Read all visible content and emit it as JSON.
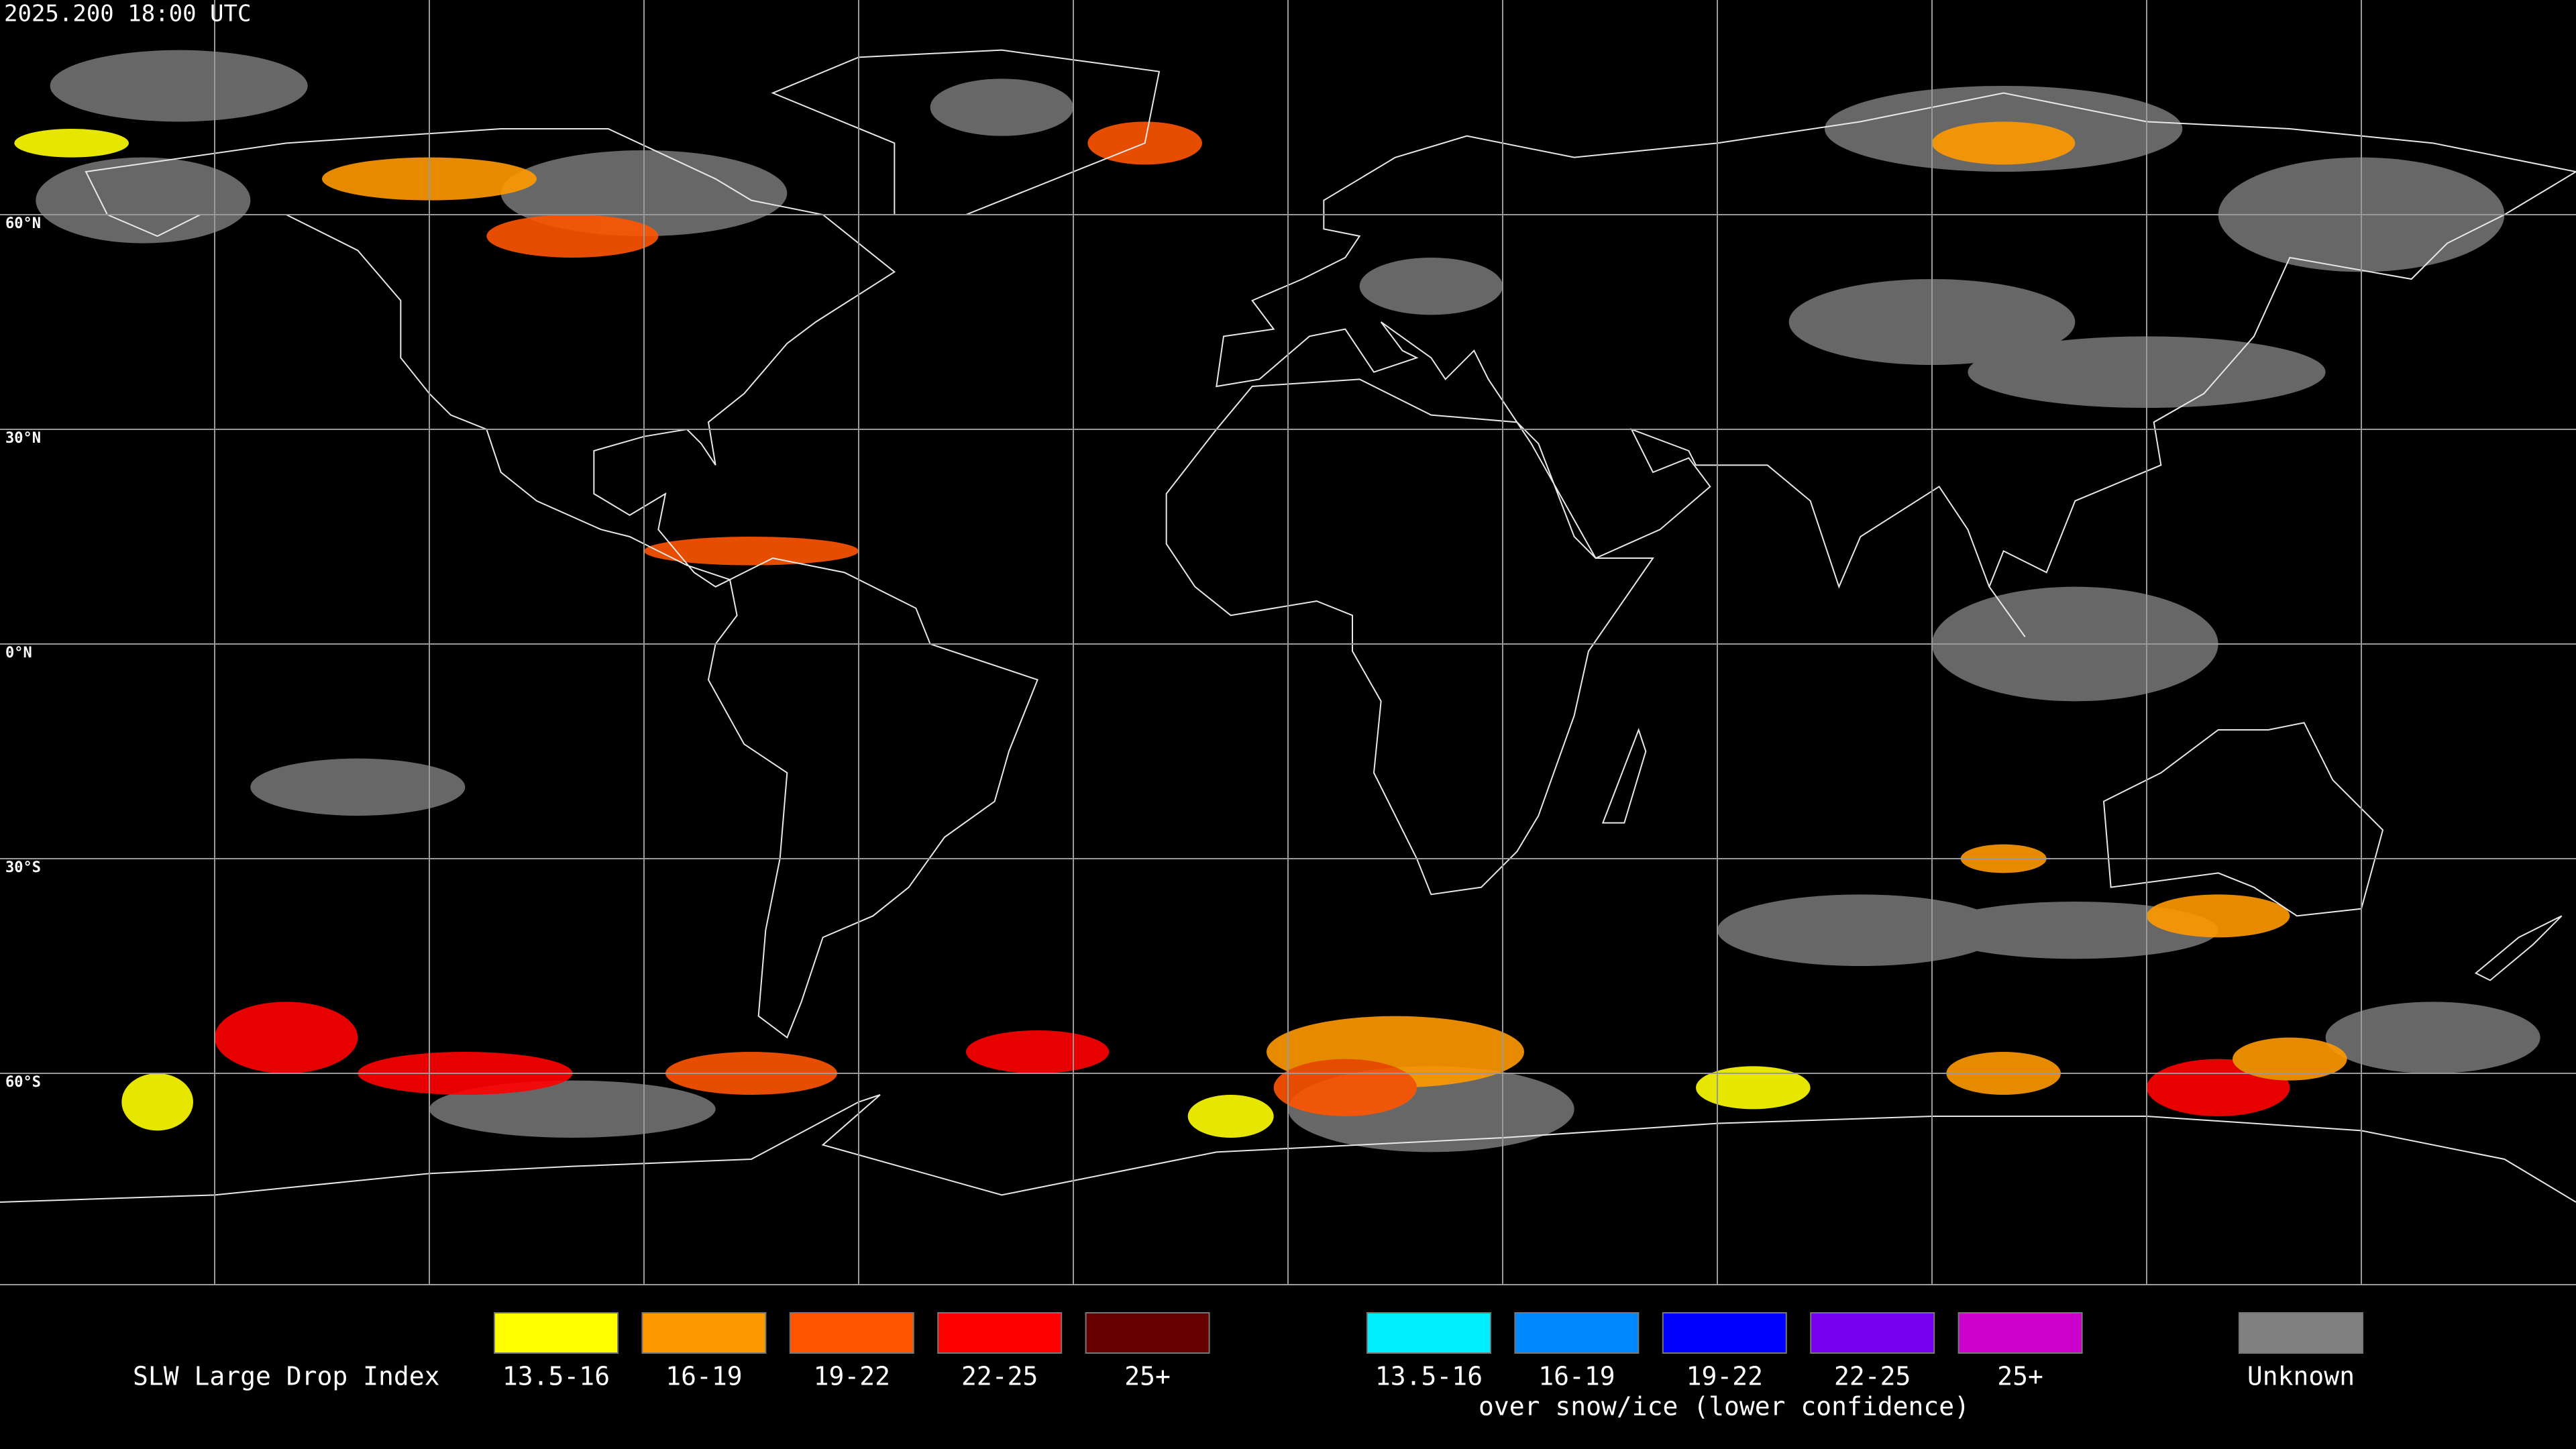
{
  "header": {
    "timestamp": "2025.200 18:00 UTC"
  },
  "map": {
    "lat_labels": [
      "60°N",
      "30°N",
      "0°N",
      "30°S",
      "60°S"
    ]
  },
  "legend": {
    "title": "SLW Large Drop Index",
    "liquid": [
      {
        "label": "13.5-16",
        "color": "#ffff00"
      },
      {
        "label": "16-19",
        "color": "#ff9900"
      },
      {
        "label": "19-22",
        "color": "#ff5500"
      },
      {
        "label": "22-25",
        "color": "#ff0000"
      },
      {
        "label": "25+",
        "color": "#660000"
      }
    ],
    "snow_ice": [
      {
        "label": "13.5-16",
        "color": "#00eeff"
      },
      {
        "label": "16-19",
        "color": "#0088ff"
      },
      {
        "label": "19-22",
        "color": "#0000ff"
      },
      {
        "label": "22-25",
        "color": "#7700ee"
      },
      {
        "label": "25+",
        "color": "#cc00cc"
      }
    ],
    "snow_ice_note": "over snow/ice (lower confidence)",
    "unknown": {
      "label": "Unknown",
      "color": "#808080"
    }
  }
}
